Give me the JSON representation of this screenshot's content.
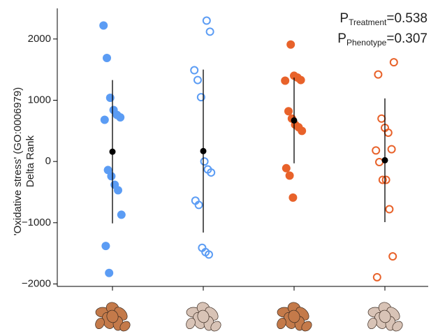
{
  "chart_data": {
    "type": "strip",
    "y_label": [
      "'Oxidative stress' (GO:0006979)",
      "Delta Rank"
    ],
    "categories": [
      null,
      null,
      null,
      null
    ],
    "series": [
      {
        "color": "#5b9cf4",
        "filled": true,
        "values": [
          2220,
          1690,
          1040,
          840,
          760,
          720,
          680,
          -140,
          -240,
          -380,
          -470,
          -870,
          -1380,
          -1820
        ],
        "mean": 160,
        "sd": 1170
      },
      {
        "color": "#5b9cf4",
        "filled": false,
        "values": [
          2300,
          2120,
          1490,
          1330,
          1050,
          0,
          -130,
          -180,
          -640,
          -710,
          -1410,
          -1480,
          -1520
        ],
        "mean": 170,
        "sd": 1330
      },
      {
        "color": "#e8622a",
        "filled": true,
        "values": [
          1910,
          1400,
          1370,
          1330,
          1320,
          820,
          700,
          600,
          560,
          500,
          -110,
          -230,
          -590
        ],
        "mean": 670,
        "sd": 700
      },
      {
        "color": "#e8622a",
        "filled": false,
        "values": [
          1620,
          1420,
          700,
          550,
          470,
          200,
          180,
          -10,
          -300,
          -300,
          -780,
          -1550,
          -1890
        ],
        "mean": 20,
        "sd": 1010
      }
    ],
    "ylim": [
      -2040,
      2500
    ],
    "yticks": [
      {
        "value": -2000,
        "label": "−2000"
      },
      {
        "value": -1000,
        "label": "−1000"
      },
      0,
      1000,
      2000
    ],
    "annotations": [
      {
        "symbol": "P",
        "subscript": "Treatment",
        "relation": "=",
        "value": 0.538
      },
      {
        "symbol": "P",
        "subscript": "Phenotype",
        "relation": "=",
        "value": 0.307
      }
    ]
  }
}
